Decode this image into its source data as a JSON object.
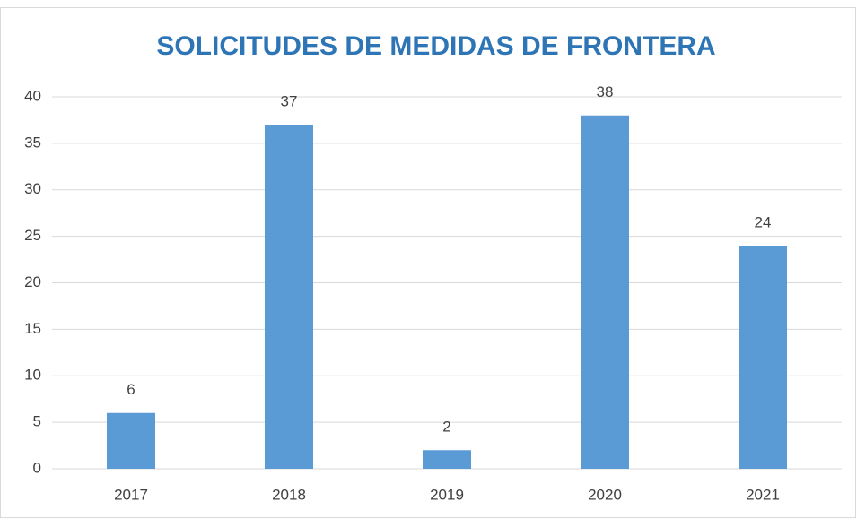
{
  "chart_data": {
    "type": "bar",
    "title": "SOLICITUDES DE MEDIDAS DE FRONTERA",
    "categories": [
      "2017",
      "2018",
      "2019",
      "2020",
      "2021"
    ],
    "values": [
      6,
      37,
      2,
      38,
      24
    ],
    "color": "#5b9bd5",
    "ylim": [
      0,
      40
    ],
    "yticks": [
      0,
      5,
      10,
      15,
      20,
      25,
      30,
      35,
      40
    ],
    "grid": true,
    "data_labels": true
  }
}
